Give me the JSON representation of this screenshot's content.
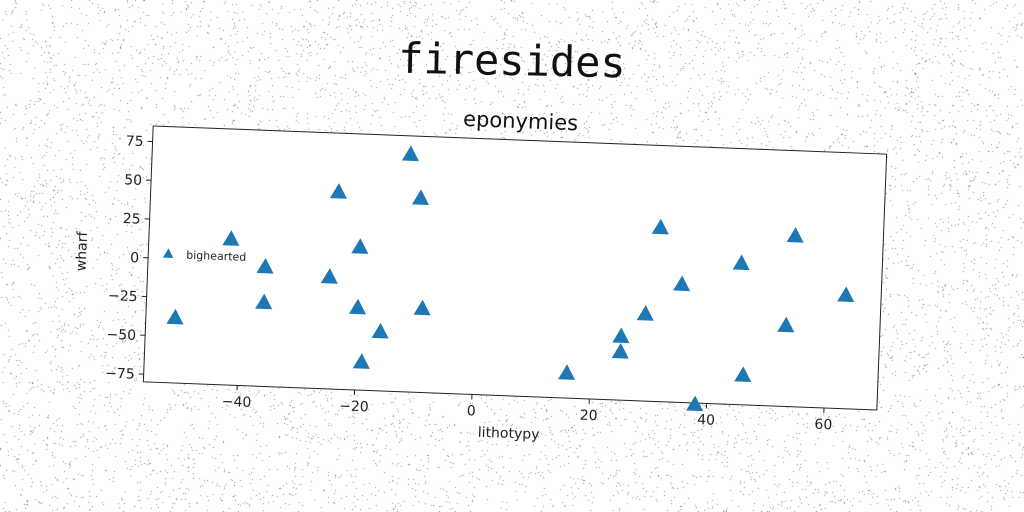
{
  "figure_title": "firesides",
  "chart_data": {
    "type": "scatter",
    "title": "eponymies",
    "xlabel": "lithotypy",
    "ylabel": "wharf",
    "xlim": [
      -56,
      69
    ],
    "ylim": [
      -80,
      85
    ],
    "xticks": [
      -40,
      -20,
      0,
      20,
      40,
      60
    ],
    "yticks": [
      75,
      50,
      25,
      0,
      -25,
      -50,
      -75
    ],
    "grid": false,
    "legend_position": "center-left",
    "series": [
      {
        "name": "bighearted",
        "marker": "triangle",
        "color": "#1f77b4",
        "points": [
          {
            "x": -51,
            "y": -38
          },
          {
            "x": -42,
            "y": 14
          },
          {
            "x": -36,
            "y": -3
          },
          {
            "x": -36,
            "y": -26
          },
          {
            "x": -25,
            "y": -8
          },
          {
            "x": -24,
            "y": 47
          },
          {
            "x": -20,
            "y": 12
          },
          {
            "x": -20,
            "y": -27
          },
          {
            "x": -19,
            "y": -62
          },
          {
            "x": -16,
            "y": -42
          },
          {
            "x": -12,
            "y": 73
          },
          {
            "x": -10,
            "y": 45
          },
          {
            "x": -9,
            "y": -26
          },
          {
            "x": 16,
            "y": -64
          },
          {
            "x": 25,
            "y": -39
          },
          {
            "x": 25,
            "y": -49
          },
          {
            "x": 29,
            "y": -24
          },
          {
            "x": 31,
            "y": 32
          },
          {
            "x": 35,
            "y": -4
          },
          {
            "x": 38,
            "y": -81
          },
          {
            "x": 45,
            "y": 11
          },
          {
            "x": 46,
            "y": -61
          },
          {
            "x": 53,
            "y": -28
          },
          {
            "x": 54,
            "y": 30
          },
          {
            "x": 63,
            "y": -7
          }
        ]
      }
    ]
  }
}
